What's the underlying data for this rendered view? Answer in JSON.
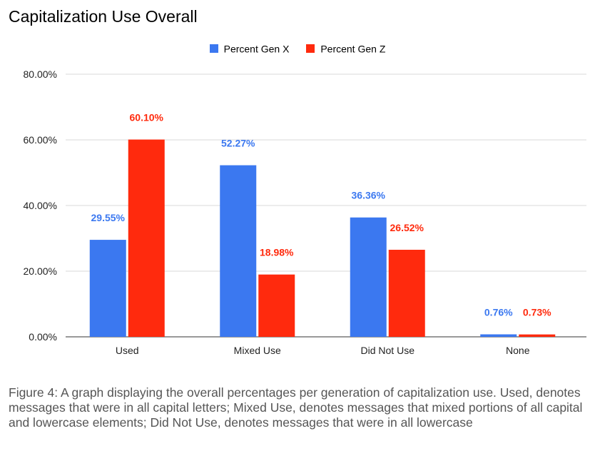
{
  "chart_data": {
    "type": "bar",
    "title": "Capitalization Use Overall",
    "categories": [
      "Used",
      "Mixed Use",
      "Did Not Use",
      "None"
    ],
    "series": [
      {
        "name": "Percent Gen X",
        "color": "#3B78F0",
        "values": [
          29.55,
          52.27,
          36.36,
          0.76
        ],
        "labels": [
          "29.55%",
          "52.27%",
          "36.36%",
          "0.76%"
        ]
      },
      {
        "name": "Percent Gen Z",
        "color": "#FF2A0D",
        "values": [
          60.1,
          18.98,
          26.52,
          0.73
        ],
        "labels": [
          "60.10%",
          "18.98%",
          "26.52%",
          "0.73%"
        ]
      }
    ],
    "ylim": [
      0,
      80
    ],
    "yticks": [
      0,
      20,
      40,
      60,
      80
    ],
    "ytick_labels": [
      "0.00%",
      "20.00%",
      "40.00%",
      "60.00%",
      "80.00%"
    ],
    "grid": true,
    "legend_position": "top"
  },
  "caption": "Figure 4: A graph displaying the overall percentages per generation of capitalization use. Used, denotes messages that were in all capital letters; Mixed Use, denotes messages that mixed portions of all capital and lowercase elements; Did Not Use, denotes messages that were in all lowercase"
}
